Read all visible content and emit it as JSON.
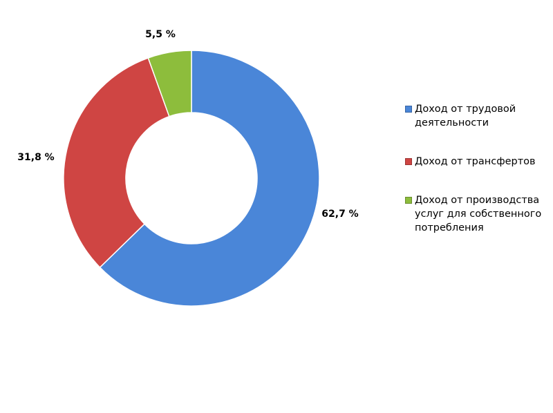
{
  "chart_data": {
    "type": "donut",
    "categories": [
      "Доход от трудовой деятельности",
      "Доход от трансфертов",
      "Доход от производства услуг для собственного потребления"
    ],
    "values": [
      62.7,
      31.8,
      5.5
    ],
    "value_labels": [
      "62,7 %",
      "31,8 %",
      "5,5 %"
    ],
    "colors": [
      "#4a86d8",
      "#cf4543",
      "#8dbd3c"
    ],
    "legend": "right"
  }
}
